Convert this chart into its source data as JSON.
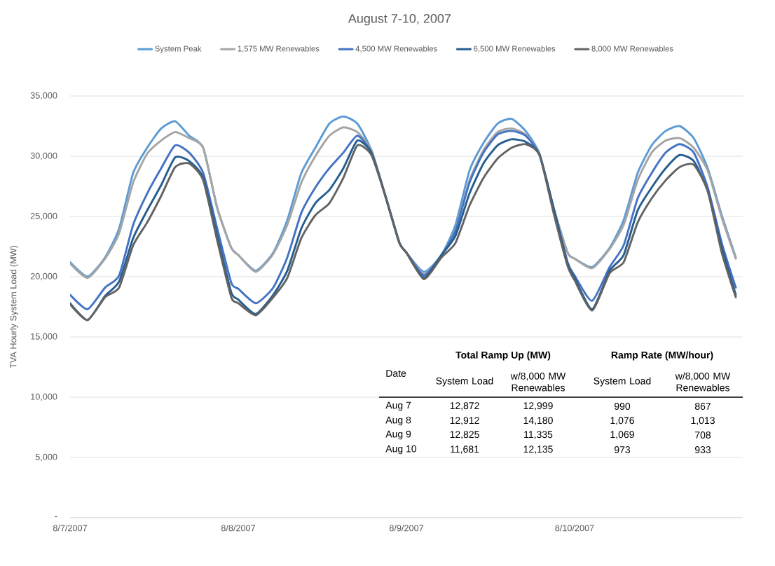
{
  "chart_data": {
    "type": "line",
    "title": "August 7-10, 2007",
    "ylabel": "TVA Hourly System Load (MW)",
    "x": [
      "2007-08-07T00:00",
      "2007-08-07T02:30",
      "2007-08-07T05:00",
      "2007-08-07T07:00",
      "2007-08-07T09:00",
      "2007-08-07T11:00",
      "2007-08-07T13:00",
      "2007-08-07T15:00",
      "2007-08-07T17:00",
      "2007-08-07T19:00",
      "2007-08-07T21:00",
      "2007-08-07T23:00",
      "2007-08-08T00:00",
      "2007-08-08T02:30",
      "2007-08-08T05:00",
      "2007-08-08T07:00",
      "2007-08-08T09:00",
      "2007-08-08T11:00",
      "2007-08-08T13:00",
      "2007-08-08T15:00",
      "2007-08-08T17:00",
      "2007-08-08T19:00",
      "2007-08-08T21:00",
      "2007-08-08T23:00",
      "2007-08-09T00:00",
      "2007-08-09T02:30",
      "2007-08-09T05:00",
      "2007-08-09T07:00",
      "2007-08-09T09:00",
      "2007-08-09T11:00",
      "2007-08-09T13:00",
      "2007-08-09T15:00",
      "2007-08-09T17:00",
      "2007-08-09T19:00",
      "2007-08-09T21:00",
      "2007-08-09T23:00",
      "2007-08-10T00:00",
      "2007-08-10T02:30",
      "2007-08-10T05:00",
      "2007-08-10T07:00",
      "2007-08-10T09:00",
      "2007-08-10T11:00",
      "2007-08-10T13:00",
      "2007-08-10T15:00",
      "2007-08-10T17:00",
      "2007-08-10T19:00",
      "2007-08-10T21:00",
      "2007-08-10T23:00"
    ],
    "series": [
      {
        "name": "System Peak",
        "color": "#5b9bd5",
        "values": [
          21200,
          20000,
          21600,
          24000,
          28600,
          30700,
          32300,
          32900,
          31700,
          30700,
          25700,
          22400,
          21800,
          20500,
          22000,
          24700,
          28600,
          30700,
          32700,
          33300,
          32700,
          30500,
          26700,
          22800,
          22000,
          20400,
          21800,
          24300,
          28800,
          31100,
          32700,
          33100,
          32100,
          30200,
          25700,
          22000,
          21500,
          20800,
          22400,
          24700,
          28600,
          30900,
          32100,
          32500,
          31500,
          29000,
          25100,
          21600
        ]
      },
      {
        "name": "1,575 MW Renewables",
        "color": "#a5a5a5",
        "values": [
          21100,
          19900,
          21500,
          23600,
          27800,
          30200,
          31300,
          32000,
          31500,
          30700,
          25700,
          22400,
          21800,
          20400,
          21900,
          24300,
          27800,
          30000,
          31700,
          32400,
          32000,
          30500,
          26700,
          22800,
          22000,
          20200,
          21800,
          23900,
          28000,
          30500,
          32000,
          32300,
          31800,
          30100,
          25700,
          22000,
          21500,
          20700,
          22300,
          24300,
          28000,
          30300,
          31300,
          31500,
          30700,
          28800,
          24900,
          21500
        ]
      },
      {
        "name": "4,500 MW Renewables",
        "color": "#4472c4",
        "values": [
          18500,
          17300,
          19100,
          20100,
          24300,
          26900,
          29000,
          30900,
          30300,
          28600,
          24000,
          19500,
          19000,
          17800,
          19100,
          21600,
          25300,
          27400,
          29000,
          30300,
          31700,
          30300,
          26700,
          22800,
          22000,
          20100,
          21800,
          23800,
          27800,
          30300,
          31800,
          32100,
          31700,
          30100,
          25700,
          21200,
          20100,
          18000,
          20800,
          22600,
          26500,
          28600,
          30300,
          31000,
          30300,
          27400,
          22800,
          19100
        ]
      },
      {
        "name": "6,500 MW Renewables",
        "color": "#255e91",
        "values": [
          17800,
          16400,
          18400,
          19600,
          23200,
          25500,
          27600,
          29900,
          29600,
          28200,
          23400,
          18700,
          18100,
          16900,
          18500,
          20500,
          24000,
          26100,
          27200,
          29000,
          31300,
          30300,
          26700,
          22800,
          22000,
          19900,
          21800,
          23400,
          26900,
          29400,
          30900,
          31400,
          31200,
          30100,
          25700,
          21100,
          19900,
          17300,
          20500,
          21800,
          25500,
          27400,
          29000,
          30100,
          29600,
          27100,
          22400,
          18500
        ]
      },
      {
        "name": "8,000 MW Renewables",
        "color": "#636363",
        "values": [
          17700,
          16400,
          18300,
          19100,
          22600,
          24500,
          26700,
          29100,
          29400,
          28000,
          23000,
          18300,
          17800,
          16800,
          18300,
          19900,
          23200,
          25100,
          26100,
          28200,
          30900,
          30100,
          26700,
          22800,
          22000,
          19800,
          21600,
          22800,
          25900,
          28200,
          29800,
          30700,
          31000,
          30100,
          25300,
          20900,
          19700,
          17200,
          20300,
          21200,
          24500,
          26500,
          28000,
          29100,
          29300,
          27100,
          22000,
          18300
        ]
      }
    ],
    "xlim": [
      "2007-08-07T00:00",
      "2007-08-11T00:00"
    ],
    "xticks": [
      {
        "value": "2007-08-07",
        "label": "8/7/2007"
      },
      {
        "value": "2007-08-08",
        "label": "8/8/2007"
      },
      {
        "value": "2007-08-09",
        "label": "8/9/2007"
      },
      {
        "value": "2007-08-10",
        "label": "8/10/2007"
      }
    ],
    "ylim": [
      0,
      35000
    ],
    "yticks": [
      {
        "value": 0,
        "label": "-"
      },
      {
        "value": 5000,
        "label": "5,000"
      },
      {
        "value": 10000,
        "label": "10,000"
      },
      {
        "value": 15000,
        "label": "15,000"
      },
      {
        "value": 20000,
        "label": "20,000"
      },
      {
        "value": 25000,
        "label": "25,000"
      },
      {
        "value": 30000,
        "label": "30,000"
      },
      {
        "value": 35000,
        "label": "35,000"
      }
    ],
    "grid": "y",
    "legend": "top",
    "annotations": [
      "Total Ramp Up (MW)",
      "Ramp Rate (MW/hour)",
      "Date",
      "System Load",
      "w/8,000 MW Renewables",
      "System Load",
      "w/8,000 MW Renewables",
      "Aug 7",
      "12,872",
      "12,999",
      "990",
      "867",
      "Aug 8",
      "12,912",
      "14,180",
      "1,076",
      "1,013",
      "Aug 9",
      "12,825",
      "11,335",
      "1,069",
      "708",
      "Aug 10",
      "11,681",
      "12,135",
      "973",
      "933"
    ]
  }
}
